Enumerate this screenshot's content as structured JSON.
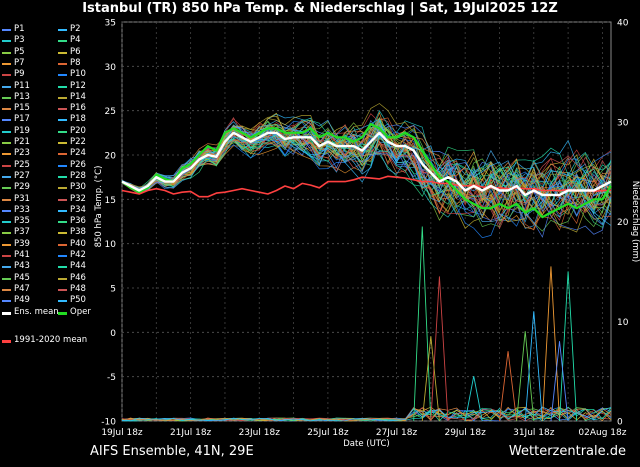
{
  "title": "Istanbul  (TR)  850 hPa Temp. & Niederschlag | Sat, 19Jul2025 12Z",
  "footer": {
    "model": "AIFS Ensemble, 41N, 29E",
    "brand": "Wetterzentrale.de"
  },
  "chart_data": {
    "type": "line",
    "xlabel": "Date (UTC)",
    "ylabel": "850 hPa Temp. (°C)",
    "y2label": "Niederschlag (mm)",
    "ylim": [
      -10,
      35
    ],
    "y2lim": [
      0,
      40
    ],
    "yticks": [
      -10,
      -5,
      0,
      5,
      10,
      15,
      20,
      25,
      30,
      35
    ],
    "y2ticks": [
      0,
      10,
      20,
      30,
      40
    ],
    "xticks": [
      "19Jul 18z",
      "21Jul 18z",
      "23Jul 18z",
      "25Jul 18z",
      "27Jul 18z",
      "29Jul 18z",
      "31Jul 18z",
      "02Aug 18z"
    ],
    "x_steps": 58,
    "grid": true,
    "legend_position": "left",
    "legend": [
      "P1",
      "P2",
      "P3",
      "P4",
      "P5",
      "P6",
      "P7",
      "P8",
      "P9",
      "P10",
      "P11",
      "P12",
      "P13",
      "P14",
      "P15",
      "P16",
      "P17",
      "P18",
      "P19",
      "P20",
      "P21",
      "P22",
      "P23",
      "P24",
      "P25",
      "P26",
      "P27",
      "P28",
      "P29",
      "P30",
      "P31",
      "P32",
      "P33",
      "P34",
      "P35",
      "P36",
      "P37",
      "P38",
      "P39",
      "P40",
      "P41",
      "P42",
      "P43",
      "P44",
      "P45",
      "P46",
      "P47",
      "P48",
      "P49",
      "P50",
      "Ens. mean",
      "Oper",
      "1991-2020 mean"
    ],
    "ens_mean": [
      17.0,
      16.5,
      16.0,
      16.5,
      17.5,
      17.0,
      17.0,
      18.0,
      18.5,
      19.5,
      20.0,
      19.8,
      21.5,
      22.5,
      22.0,
      21.5,
      22.0,
      22.5,
      22.5,
      21.8,
      22.0,
      22.0,
      22.0,
      21.0,
      21.5,
      21.0,
      21.0,
      21.0,
      20.5,
      21.5,
      22.5,
      21.5,
      21.0,
      21.0,
      20.5,
      19.0,
      18.0,
      17.0,
      17.5,
      17.0,
      16.0,
      16.5,
      16.0,
      16.5,
      16.0,
      16.0,
      16.5,
      15.5,
      16.0,
      15.5,
      15.5,
      15.5,
      16.0,
      16.0,
      16.0,
      16.0,
      16.5,
      17.0
    ],
    "oper": [
      17.0,
      16.3,
      15.8,
      16.3,
      17.8,
      17.3,
      17.0,
      18.5,
      19.0,
      20.0,
      21.0,
      20.5,
      22.5,
      23.0,
      22.5,
      22.0,
      22.5,
      23.0,
      23.0,
      22.5,
      22.5,
      22.5,
      23.0,
      22.0,
      22.5,
      22.0,
      22.0,
      21.5,
      22.0,
      23.5,
      23.0,
      22.0,
      22.0,
      22.5,
      22.0,
      20.5,
      19.0,
      17.5,
      17.0,
      16.0,
      15.0,
      14.5,
      14.0,
      14.0,
      14.5,
      14.0,
      14.5,
      13.5,
      14.0,
      13.0,
      13.5,
      14.0,
      14.5,
      14.0,
      14.5,
      15.0,
      15.0,
      16.5
    ],
    "clim_mean": [
      16.0,
      15.8,
      15.6,
      16.0,
      16.2,
      16.0,
      15.6,
      15.8,
      15.9,
      15.3,
      15.3,
      15.7,
      15.8,
      16.0,
      16.2,
      16.0,
      15.8,
      15.6,
      16.0,
      16.5,
      16.2,
      16.8,
      16.6,
      16.3,
      17.0,
      17.0,
      17.0,
      17.2,
      17.5,
      17.4,
      17.3,
      17.6,
      17.5,
      17.4,
      17.2,
      17.0,
      17.0,
      16.8,
      16.8,
      16.6,
      16.5,
      16.6,
      16.4,
      16.3,
      16.3,
      16.2,
      16.3,
      16.2,
      16.2,
      16.0,
      16.0,
      16.0,
      16.1,
      16.0,
      16.0,
      15.9,
      16.0,
      16.0
    ],
    "precip_spikes_mm": [
      {
        "step": 35,
        "mm": 19.5
      },
      {
        "step": 37,
        "mm": 14.5
      },
      {
        "step": 36,
        "mm": 8.5
      },
      {
        "step": 41,
        "mm": 4.5
      },
      {
        "step": 45,
        "mm": 7.0
      },
      {
        "step": 47,
        "mm": 9.0
      },
      {
        "step": 48,
        "mm": 11.0
      },
      {
        "step": 50,
        "mm": 15.5
      },
      {
        "step": 52,
        "mm": 15.0
      },
      {
        "step": 51,
        "mm": 8.0
      }
    ],
    "colors": {
      "ens_mean": "#ffffff",
      "oper": "#22dd22",
      "clim_mean": "#ff4040",
      "members": [
        "#5588ff",
        "#33bbff",
        "#22cccc",
        "#33dd88",
        "#88cc44",
        "#ccbb33",
        "#ee9933",
        "#dd6633",
        "#cc4444",
        "#2288ff",
        "#44aaee",
        "#22ddaa",
        "#66cc55",
        "#bbaa33",
        "#dd8844",
        "#cc5555"
      ]
    }
  }
}
